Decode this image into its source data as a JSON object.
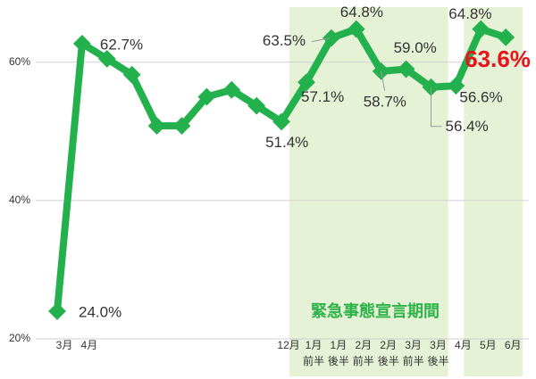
{
  "chart_data": {
    "type": "line",
    "categories": [
      "3月",
      "4月",
      null,
      null,
      null,
      null,
      null,
      null,
      null,
      "12月",
      "1月",
      "1月",
      "2月",
      "2月",
      "3月",
      "3月",
      "4月",
      "5月",
      "6月"
    ],
    "category_sublabels": [
      null,
      null,
      null,
      null,
      null,
      null,
      null,
      null,
      null,
      null,
      "前半",
      "後半",
      "前半",
      "後半",
      "前半",
      "後半",
      null,
      null,
      null
    ],
    "series": [
      {
        "color": "#22b14c",
        "values": [
          24.0,
          62.7,
          60.5,
          58.2,
          50.8,
          50.8,
          55.0,
          56.0,
          53.7,
          51.4,
          57.1,
          63.5,
          64.8,
          58.7,
          59.0,
          56.4,
          56.6,
          64.8,
          63.6
        ],
        "value_labels": [
          "24.0%",
          "62.7%",
          null,
          null,
          null,
          null,
          null,
          null,
          null,
          "51.4%",
          "57.1%",
          "63.5%",
          "64.8%",
          "58.7%",
          "59.0%",
          "56.4%",
          "56.6%",
          "64.8%",
          "63.6%"
        ]
      }
    ],
    "highlight_label_index": 18,
    "highlight_color": "#e8141b",
    "shaded_periods": [
      [
        10,
        15
      ],
      [
        17,
        18
      ]
    ],
    "shaded_color": "#e5f2d6",
    "shaded_label": "緊急事態宣言期間",
    "shaded_label_color": "#2db34a",
    "ylim": [
      14.2,
      69.0
    ],
    "yticks": [
      {
        "value": 20,
        "label": "20%"
      },
      {
        "value": 40,
        "label": "40%"
      },
      {
        "value": 60,
        "label": "60%"
      }
    ],
    "grid": true
  }
}
